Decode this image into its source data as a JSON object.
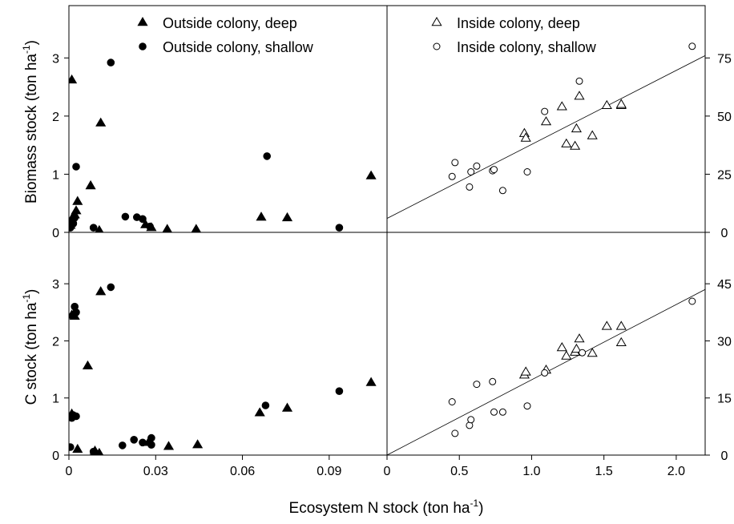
{
  "figure": {
    "ylabel_top": {
      "text": "Biomass stock (ton ha",
      "sup": "-1",
      "close": ")"
    },
    "ylabel_bottom": {
      "text": "C stock (ton ha",
      "sup": "-1",
      "close": ")"
    },
    "xlabel": {
      "text": "Ecosystem N stock (ton ha",
      "sup": "-1",
      "close": ")"
    }
  },
  "chart_data": [
    {
      "id": "biomass-outside",
      "type": "scatter",
      "xlim": [
        0,
        0.11
      ],
      "ylim": [
        0,
        3.9
      ],
      "xticks": [
        0,
        0.03,
        0.06,
        0.09
      ],
      "xticklabels": [
        "0",
        "0.03",
        "0.06",
        "0.09"
      ],
      "yticks": [
        0,
        1,
        2,
        3
      ],
      "yticklabels": [
        "0",
        "1",
        "2",
        "3"
      ],
      "legend_position": "top-center",
      "series": [
        {
          "name": "Outside colony, deep",
          "marker": "triangle",
          "filled": true,
          "points": [
            [
              0.001,
              2.62
            ],
            [
              0.011,
              1.88
            ],
            [
              0.0075,
              0.8
            ],
            [
              0.003,
              0.53
            ],
            [
              0.0025,
              0.37
            ],
            [
              0.002,
              0.3
            ],
            [
              0.001,
              0.23
            ],
            [
              0.0005,
              0.12
            ],
            [
              0.0105,
              0.03
            ],
            [
              0.0265,
              0.13
            ],
            [
              0.0285,
              0.08
            ],
            [
              0.034,
              0.05
            ],
            [
              0.044,
              0.05
            ],
            [
              0.0665,
              0.26
            ],
            [
              0.0755,
              0.25
            ],
            [
              0.1045,
              0.97
            ]
          ]
        },
        {
          "name": "Outside colony, shallow",
          "marker": "circle",
          "filled": true,
          "points": [
            [
              0.0145,
              2.92
            ],
            [
              0.0025,
              1.13
            ],
            [
              0.0685,
              1.31
            ],
            [
              0.002,
              0.25
            ],
            [
              0.0015,
              0.15
            ],
            [
              0.0005,
              0.08
            ],
            [
              0.0085,
              0.08
            ],
            [
              0.0195,
              0.27
            ],
            [
              0.0235,
              0.26
            ],
            [
              0.0255,
              0.23
            ],
            [
              0.028,
              0.1
            ],
            [
              0.0935,
              0.08
            ]
          ]
        }
      ]
    },
    {
      "id": "biomass-inside",
      "type": "scatter",
      "xlim": [
        0,
        2.2
      ],
      "ylim_right": [
        0,
        97.5
      ],
      "yticks_right": [
        0,
        25,
        50,
        75
      ],
      "yticklabels_right": [
        "0",
        "25",
        "50",
        "75"
      ],
      "legend_position": "top-center",
      "series": [
        {
          "name": "Inside colony, deep",
          "marker": "triangle",
          "filled": false,
          "points": [
            [
              0.95,
              42.5
            ],
            [
              0.96,
              40.5
            ],
            [
              1.1,
              47.5
            ],
            [
              1.21,
              54
            ],
            [
              1.24,
              38
            ],
            [
              1.3,
              37
            ],
            [
              1.31,
              44.5
            ],
            [
              1.33,
              58.5
            ],
            [
              1.42,
              41.5
            ],
            [
              1.52,
              54.5
            ],
            [
              1.62,
              54.5
            ],
            [
              1.62,
              55
            ]
          ]
        },
        {
          "name": "Inside colony, shallow",
          "marker": "circle",
          "filled": false,
          "points": [
            [
              0.45,
              24
            ],
            [
              0.47,
              30
            ],
            [
              0.57,
              19.5
            ],
            [
              0.58,
              26
            ],
            [
              0.62,
              28.5
            ],
            [
              0.73,
              26.5
            ],
            [
              0.74,
              27
            ],
            [
              0.8,
              18
            ],
            [
              0.97,
              26
            ],
            [
              1.09,
              52
            ],
            [
              1.33,
              65
            ],
            [
              2.11,
              80
            ]
          ]
        }
      ],
      "fit_line": {
        "x": [
          0,
          2.2
        ],
        "y": [
          6,
          76
        ]
      }
    },
    {
      "id": "c-outside",
      "type": "scatter",
      "xlim": [
        0,
        0.11
      ],
      "ylim": [
        0,
        3.9
      ],
      "xticks": [
        0,
        0.03,
        0.06,
        0.09
      ],
      "xticklabels": [
        "0",
        "0.03",
        "0.06",
        "0.09"
      ],
      "yticks": [
        0,
        1,
        2,
        3
      ],
      "yticklabels": [
        "0",
        "1",
        "2",
        "3"
      ],
      "series": [
        {
          "name": "Outside colony, deep",
          "marker": "triangle",
          "filled": true,
          "points": [
            [
              0.001,
              2.45
            ],
            [
              0.002,
              2.43
            ],
            [
              0.011,
              2.86
            ],
            [
              0.0065,
              1.56
            ],
            [
              0.001,
              0.72
            ],
            [
              0.003,
              0.1
            ],
            [
              0.009,
              0.07
            ],
            [
              0.0105,
              0.03
            ],
            [
              0.0275,
              0.22
            ],
            [
              0.0345,
              0.15
            ],
            [
              0.0445,
              0.18
            ],
            [
              0.066,
              0.74
            ],
            [
              0.0755,
              0.82
            ],
            [
              0.1045,
              1.27
            ]
          ]
        },
        {
          "name": "Outside colony, shallow",
          "marker": "circle",
          "filled": true,
          "points": [
            [
              0.0145,
              2.94
            ],
            [
              0.002,
              2.6
            ],
            [
              0.0025,
              2.5
            ],
            [
              0.0015,
              0.7
            ],
            [
              0.001,
              0.65
            ],
            [
              0.0025,
              0.68
            ],
            [
              0.0005,
              0.14
            ],
            [
              0.0085,
              0.06
            ],
            [
              0.0185,
              0.17
            ],
            [
              0.0225,
              0.27
            ],
            [
              0.0255,
              0.22
            ],
            [
              0.0285,
              0.3
            ],
            [
              0.0285,
              0.18
            ],
            [
              0.068,
              0.87
            ],
            [
              0.0935,
              1.12
            ]
          ]
        }
      ]
    },
    {
      "id": "c-inside",
      "type": "scatter",
      "xlim": [
        0,
        2.2
      ],
      "ylim_right": [
        0,
        58.5
      ],
      "yticks_right": [
        0,
        15,
        30,
        45
      ],
      "yticklabels_right": [
        "0",
        "15",
        "30",
        "45"
      ],
      "xticks": [
        0,
        0.5,
        1.0,
        1.5,
        2.0
      ],
      "xticklabels": [
        "0",
        "0.5",
        "1.0",
        "1.5",
        "2.0"
      ],
      "series": [
        {
          "name": "Inside colony, deep",
          "marker": "triangle",
          "filled": false,
          "points": [
            [
              0.95,
              21
            ],
            [
              0.96,
              21.8
            ],
            [
              1.1,
              22.3
            ],
            [
              1.21,
              28.2
            ],
            [
              1.24,
              26
            ],
            [
              1.3,
              27
            ],
            [
              1.31,
              27.8
            ],
            [
              1.33,
              30.5
            ],
            [
              1.42,
              26.7
            ],
            [
              1.52,
              33.8
            ],
            [
              1.62,
              33.8
            ],
            [
              1.62,
              29.5
            ]
          ]
        },
        {
          "name": "Inside colony, shallow",
          "marker": "circle",
          "filled": false,
          "points": [
            [
              0.45,
              14
            ],
            [
              0.47,
              5.7
            ],
            [
              0.57,
              7.8
            ],
            [
              0.58,
              9.3
            ],
            [
              0.62,
              18.6
            ],
            [
              0.73,
              19.3
            ],
            [
              0.74,
              11.3
            ],
            [
              0.8,
              11.3
            ],
            [
              0.97,
              12.9
            ],
            [
              1.09,
              21.6
            ],
            [
              1.35,
              26.9
            ],
            [
              2.11,
              40.4
            ]
          ]
        }
      ],
      "fit_line": {
        "x": [
          0,
          2.2
        ],
        "y": [
          0,
          43.5
        ]
      }
    }
  ]
}
